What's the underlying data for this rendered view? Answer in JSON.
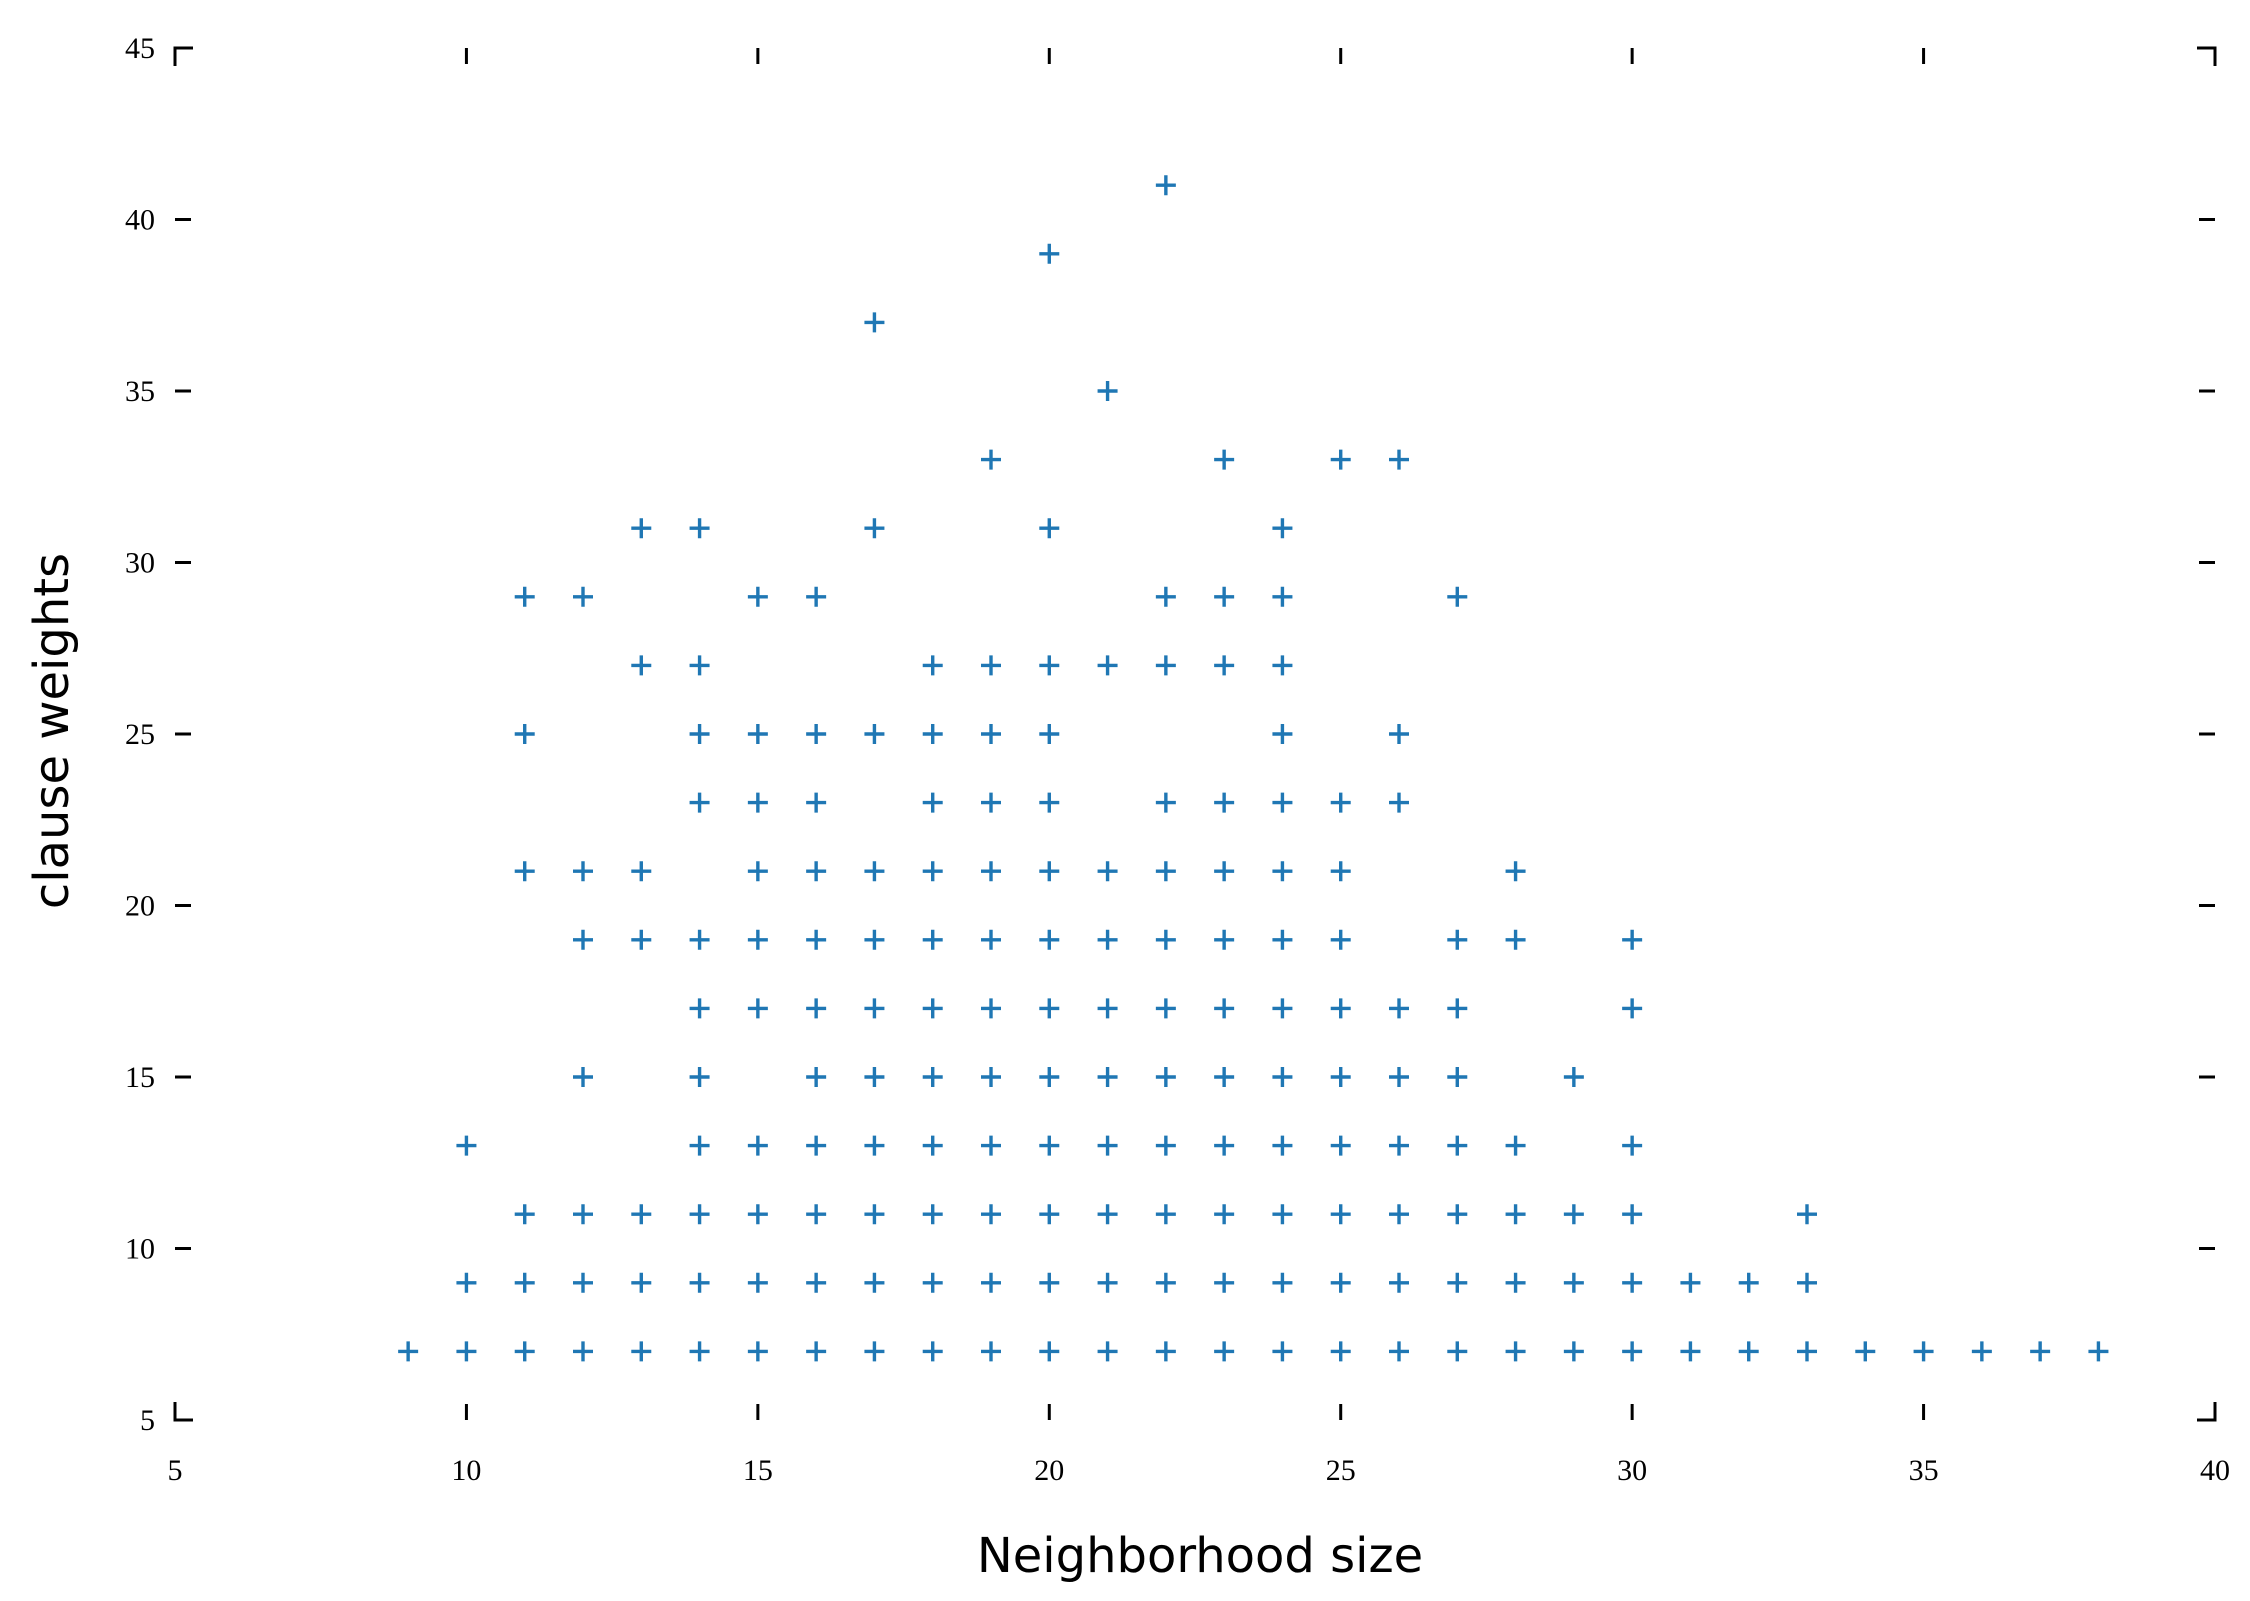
{
  "chart_data": {
    "type": "scatter",
    "title": "",
    "xlabel": "Neighborhood size",
    "ylabel": "clause weights",
    "xlim": [
      5,
      40
    ],
    "ylim": [
      5,
      45
    ],
    "xticks": [
      "5",
      "10",
      "15",
      "20",
      "25",
      "30",
      "35",
      "40"
    ],
    "yticks": [
      "5",
      "10",
      "15",
      "20",
      "25",
      "30",
      "35",
      "40",
      "45"
    ],
    "marker": "plus",
    "color": "#1f77b4",
    "grid": false,
    "points": [
      [
        9,
        7
      ],
      [
        10,
        7
      ],
      [
        11,
        7
      ],
      [
        12,
        7
      ],
      [
        13,
        7
      ],
      [
        14,
        7
      ],
      [
        15,
        7
      ],
      [
        16,
        7
      ],
      [
        17,
        7
      ],
      [
        18,
        7
      ],
      [
        19,
        7
      ],
      [
        20,
        7
      ],
      [
        21,
        7
      ],
      [
        22,
        7
      ],
      [
        23,
        7
      ],
      [
        24,
        7
      ],
      [
        25,
        7
      ],
      [
        26,
        7
      ],
      [
        27,
        7
      ],
      [
        28,
        7
      ],
      [
        29,
        7
      ],
      [
        30,
        7
      ],
      [
        31,
        7
      ],
      [
        32,
        7
      ],
      [
        33,
        7
      ],
      [
        34,
        7
      ],
      [
        35,
        7
      ],
      [
        36,
        7
      ],
      [
        37,
        7
      ],
      [
        38,
        7
      ],
      [
        10,
        9
      ],
      [
        11,
        9
      ],
      [
        12,
        9
      ],
      [
        13,
        9
      ],
      [
        14,
        9
      ],
      [
        15,
        9
      ],
      [
        16,
        9
      ],
      [
        17,
        9
      ],
      [
        18,
        9
      ],
      [
        19,
        9
      ],
      [
        20,
        9
      ],
      [
        21,
        9
      ],
      [
        22,
        9
      ],
      [
        23,
        9
      ],
      [
        24,
        9
      ],
      [
        25,
        9
      ],
      [
        26,
        9
      ],
      [
        27,
        9
      ],
      [
        28,
        9
      ],
      [
        29,
        9
      ],
      [
        30,
        9
      ],
      [
        31,
        9
      ],
      [
        32,
        9
      ],
      [
        33,
        9
      ],
      [
        11,
        11
      ],
      [
        12,
        11
      ],
      [
        13,
        11
      ],
      [
        14,
        11
      ],
      [
        15,
        11
      ],
      [
        16,
        11
      ],
      [
        17,
        11
      ],
      [
        18,
        11
      ],
      [
        19,
        11
      ],
      [
        20,
        11
      ],
      [
        21,
        11
      ],
      [
        22,
        11
      ],
      [
        23,
        11
      ],
      [
        24,
        11
      ],
      [
        25,
        11
      ],
      [
        26,
        11
      ],
      [
        27,
        11
      ],
      [
        28,
        11
      ],
      [
        29,
        11
      ],
      [
        30,
        11
      ],
      [
        33,
        11
      ],
      [
        10,
        13
      ],
      [
        14,
        13
      ],
      [
        15,
        13
      ],
      [
        16,
        13
      ],
      [
        17,
        13
      ],
      [
        18,
        13
      ],
      [
        19,
        13
      ],
      [
        20,
        13
      ],
      [
        21,
        13
      ],
      [
        22,
        13
      ],
      [
        23,
        13
      ],
      [
        24,
        13
      ],
      [
        25,
        13
      ],
      [
        26,
        13
      ],
      [
        27,
        13
      ],
      [
        28,
        13
      ],
      [
        30,
        13
      ],
      [
        12,
        15
      ],
      [
        14,
        15
      ],
      [
        16,
        15
      ],
      [
        17,
        15
      ],
      [
        18,
        15
      ],
      [
        19,
        15
      ],
      [
        20,
        15
      ],
      [
        21,
        15
      ],
      [
        22,
        15
      ],
      [
        23,
        15
      ],
      [
        24,
        15
      ],
      [
        25,
        15
      ],
      [
        26,
        15
      ],
      [
        27,
        15
      ],
      [
        29,
        15
      ],
      [
        14,
        17
      ],
      [
        15,
        17
      ],
      [
        16,
        17
      ],
      [
        17,
        17
      ],
      [
        18,
        17
      ],
      [
        19,
        17
      ],
      [
        20,
        17
      ],
      [
        21,
        17
      ],
      [
        22,
        17
      ],
      [
        23,
        17
      ],
      [
        24,
        17
      ],
      [
        25,
        17
      ],
      [
        26,
        17
      ],
      [
        27,
        17
      ],
      [
        30,
        17
      ],
      [
        12,
        19
      ],
      [
        13,
        19
      ],
      [
        14,
        19
      ],
      [
        15,
        19
      ],
      [
        16,
        19
      ],
      [
        17,
        19
      ],
      [
        18,
        19
      ],
      [
        19,
        19
      ],
      [
        20,
        19
      ],
      [
        21,
        19
      ],
      [
        22,
        19
      ],
      [
        23,
        19
      ],
      [
        24,
        19
      ],
      [
        25,
        19
      ],
      [
        27,
        19
      ],
      [
        28,
        19
      ],
      [
        30,
        19
      ],
      [
        11,
        21
      ],
      [
        12,
        21
      ],
      [
        13,
        21
      ],
      [
        15,
        21
      ],
      [
        16,
        21
      ],
      [
        17,
        21
      ],
      [
        18,
        21
      ],
      [
        19,
        21
      ],
      [
        20,
        21
      ],
      [
        21,
        21
      ],
      [
        22,
        21
      ],
      [
        23,
        21
      ],
      [
        24,
        21
      ],
      [
        25,
        21
      ],
      [
        28,
        21
      ],
      [
        14,
        23
      ],
      [
        15,
        23
      ],
      [
        16,
        23
      ],
      [
        18,
        23
      ],
      [
        19,
        23
      ],
      [
        20,
        23
      ],
      [
        22,
        23
      ],
      [
        23,
        23
      ],
      [
        24,
        23
      ],
      [
        25,
        23
      ],
      [
        26,
        23
      ],
      [
        11,
        25
      ],
      [
        14,
        25
      ],
      [
        15,
        25
      ],
      [
        16,
        25
      ],
      [
        17,
        25
      ],
      [
        18,
        25
      ],
      [
        19,
        25
      ],
      [
        20,
        25
      ],
      [
        24,
        25
      ],
      [
        26,
        25
      ],
      [
        13,
        27
      ],
      [
        14,
        27
      ],
      [
        18,
        27
      ],
      [
        19,
        27
      ],
      [
        20,
        27
      ],
      [
        21,
        27
      ],
      [
        22,
        27
      ],
      [
        23,
        27
      ],
      [
        24,
        27
      ],
      [
        11,
        29
      ],
      [
        12,
        29
      ],
      [
        15,
        29
      ],
      [
        16,
        29
      ],
      [
        22,
        29
      ],
      [
        23,
        29
      ],
      [
        24,
        29
      ],
      [
        27,
        29
      ],
      [
        13,
        31
      ],
      [
        14,
        31
      ],
      [
        17,
        31
      ],
      [
        20,
        31
      ],
      [
        24,
        31
      ],
      [
        19,
        33
      ],
      [
        23,
        33
      ],
      [
        25,
        33
      ],
      [
        26,
        33
      ],
      [
        21,
        35
      ],
      [
        17,
        37
      ],
      [
        20,
        39
      ],
      [
        22,
        41
      ]
    ]
  }
}
